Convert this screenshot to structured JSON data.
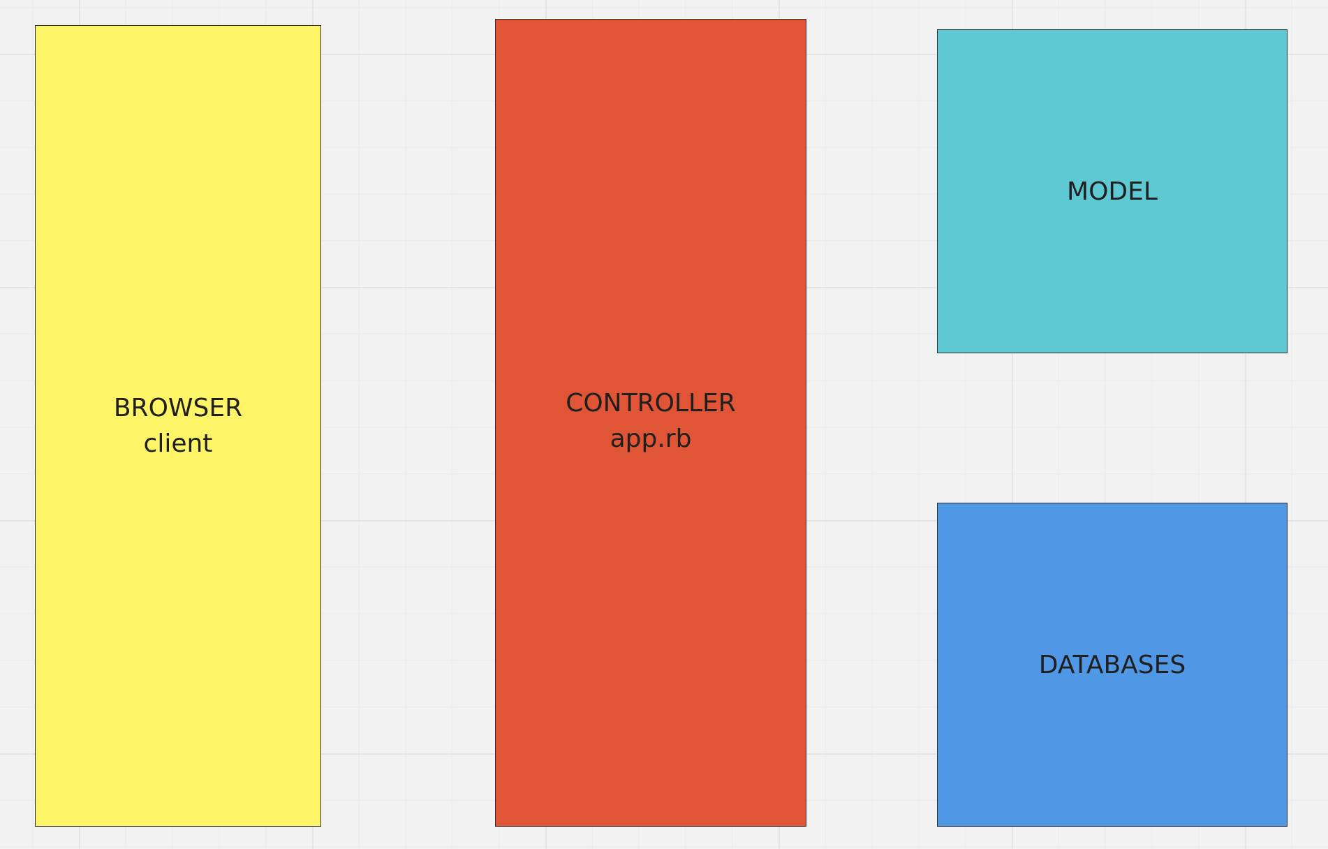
{
  "colors": {
    "canvas_background": "#f2f2f2",
    "grid_line": "#e4e4e4",
    "border": "#2a2a2a",
    "text": "#1f1f1f"
  },
  "shapes": {
    "browser": {
      "line1": "BROWSER",
      "line2": "client",
      "fill": "#fdf467"
    },
    "controller": {
      "line1": "CONTROLLER",
      "line2": "app.rb",
      "fill": "#e05535"
    },
    "model": {
      "line1": "MODEL",
      "fill": "#5ec9d3"
    },
    "databases": {
      "line1": "DATABASES",
      "fill": "#5098e5"
    }
  }
}
